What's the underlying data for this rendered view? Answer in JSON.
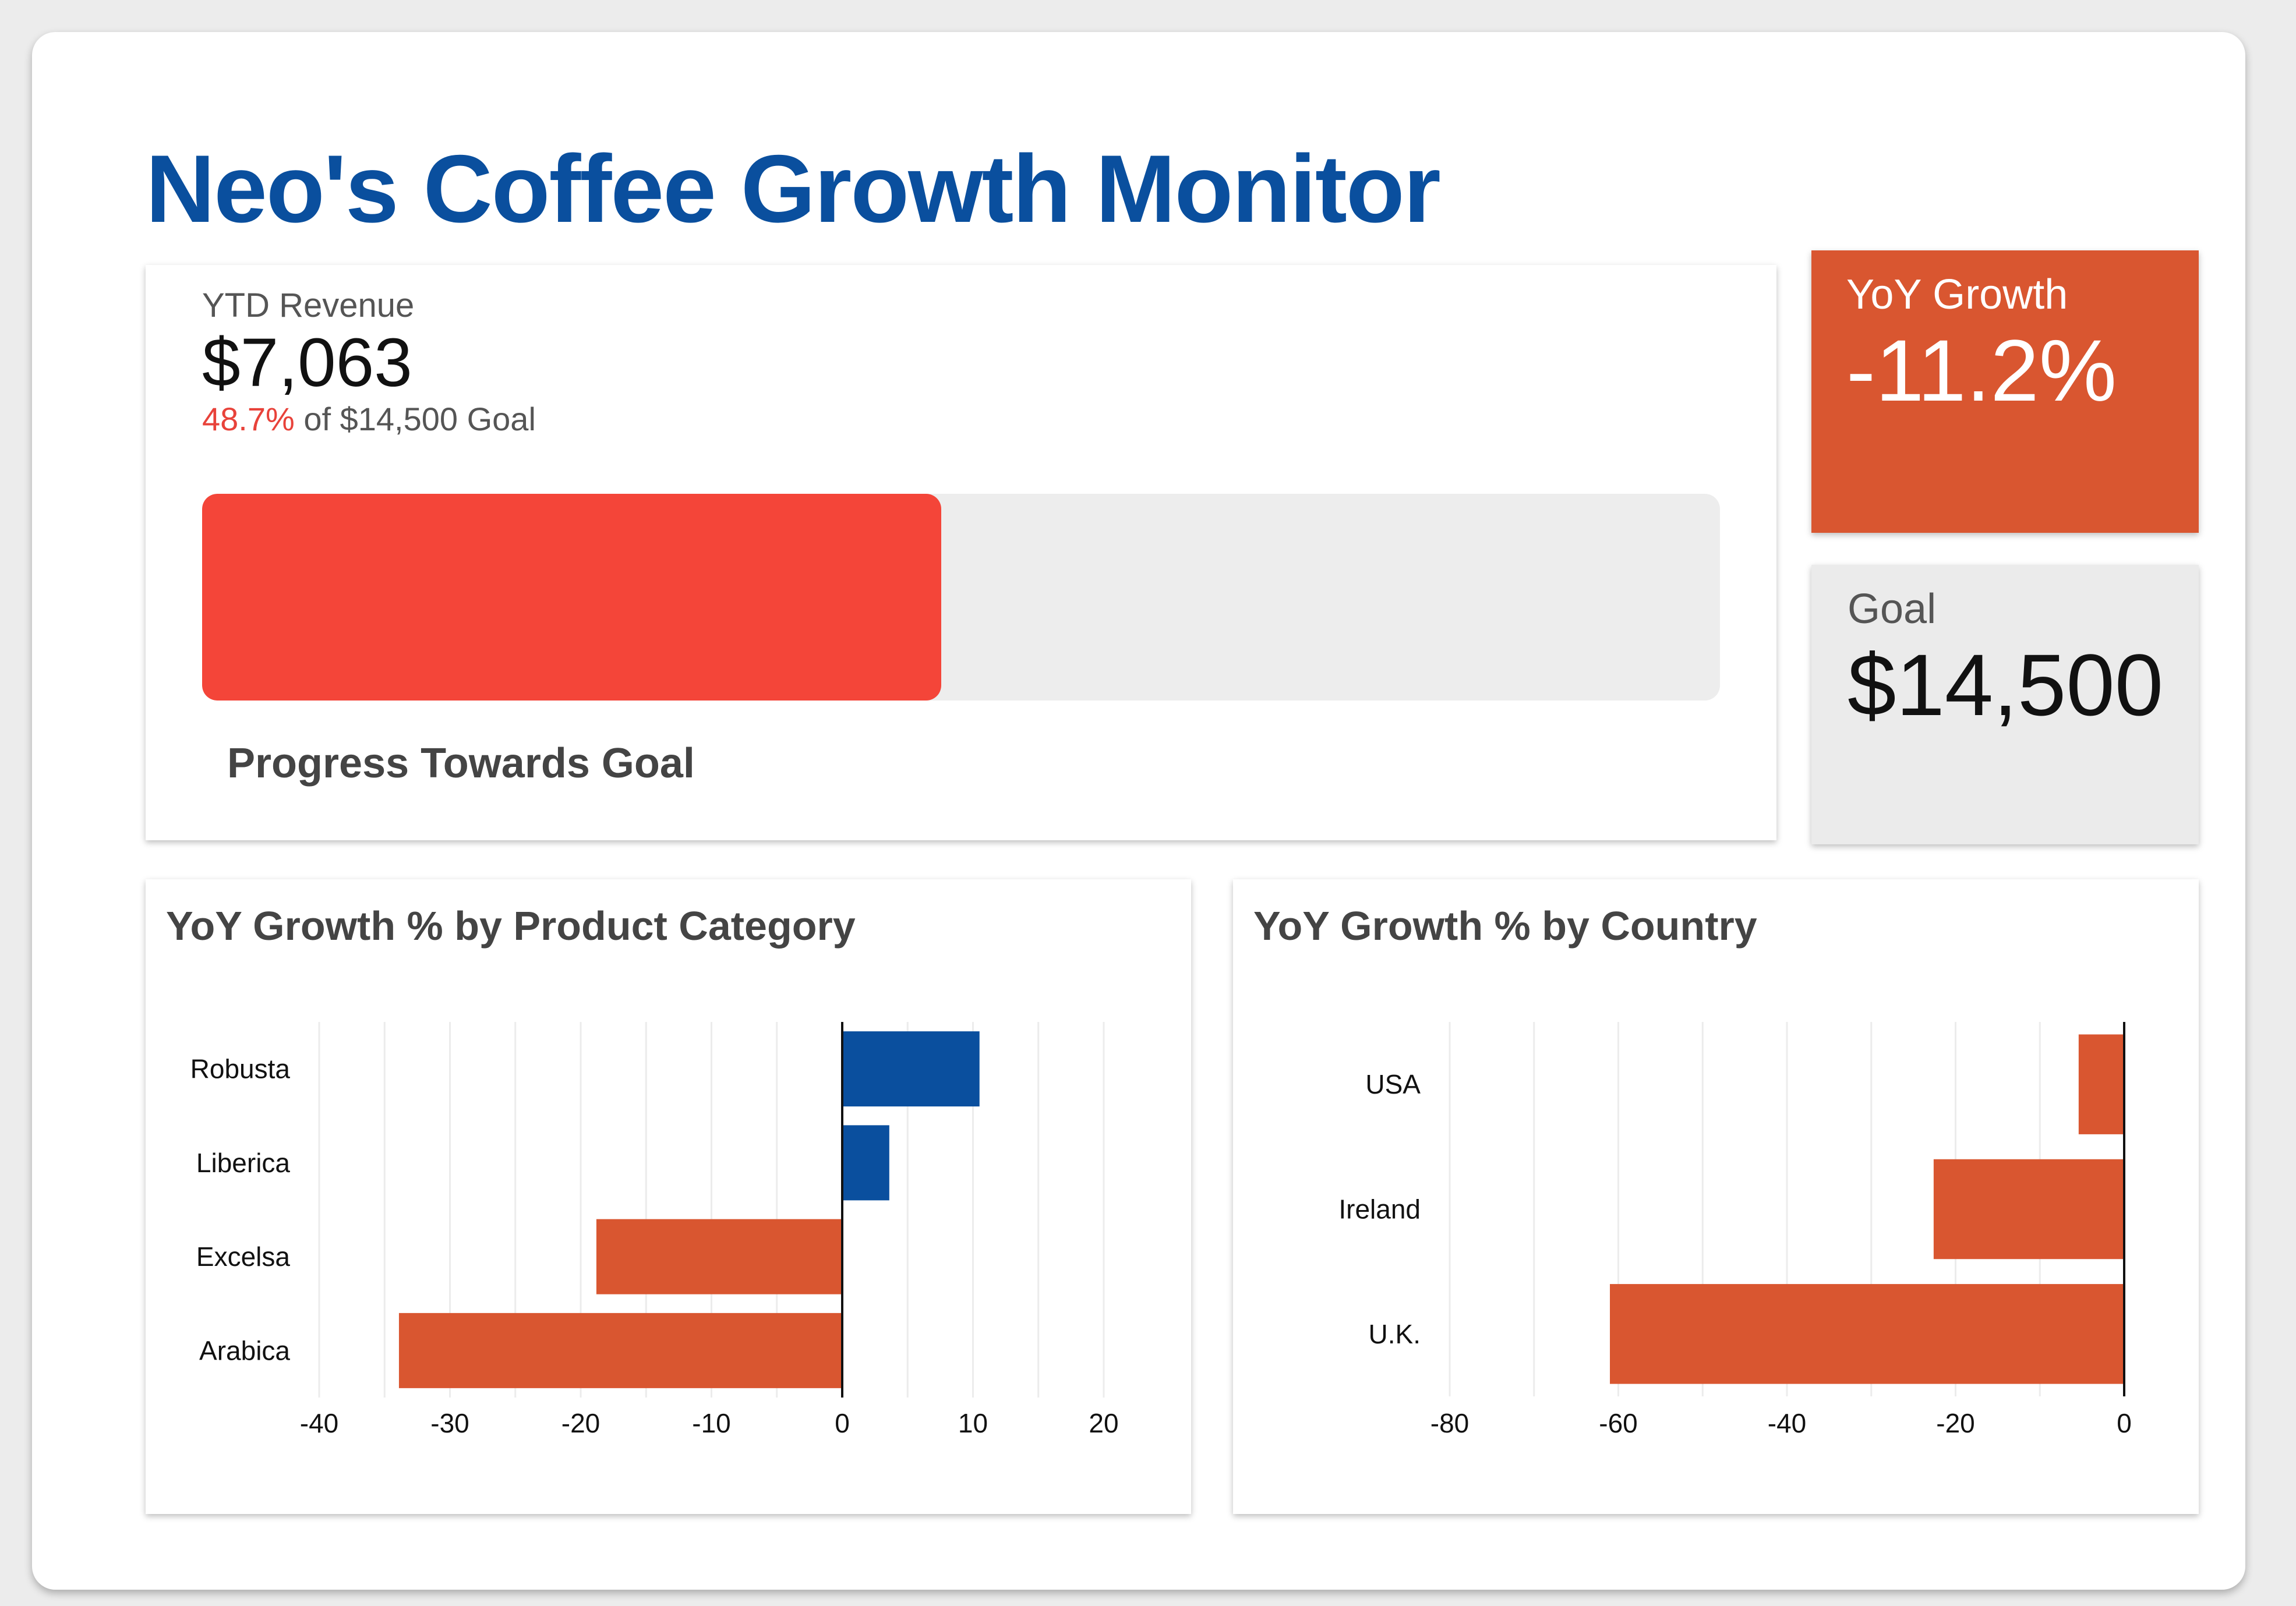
{
  "dashboard": {
    "title": "Neo's Coffee Growth Monitor"
  },
  "progress": {
    "label": "YTD Revenue",
    "value": "$7,063",
    "percent_text": "48.7%",
    "goal_text": "of $14,500 Goal",
    "fraction": 0.487,
    "caption": "Progress Towards Goal",
    "fill_color": "#f44539",
    "track_color": "#ededed"
  },
  "kpis": {
    "yoy": {
      "label": "YoY Growth",
      "value": "-11.2%",
      "color": "#d95630"
    },
    "goal": {
      "label": "Goal",
      "value": "$14,500",
      "color": "#ebebeb"
    }
  },
  "chart_data": [
    {
      "type": "bar",
      "orientation": "horizontal",
      "title": "YoY Growth % by Product Category",
      "categories": [
        "Robusta",
        "Liberica",
        "Excelsa",
        "Arabica"
      ],
      "values": [
        10.5,
        3.6,
        -18.8,
        -33.9
      ],
      "xlim": [
        -40,
        20
      ],
      "xticks": [
        -40,
        -30,
        -20,
        -10,
        0,
        10,
        20
      ],
      "grid": true,
      "positive_color": "#0a4f9e",
      "negative_color": "#d95630"
    },
    {
      "type": "bar",
      "orientation": "horizontal",
      "title": "YoY Growth % by Country",
      "categories": [
        "USA",
        "Ireland",
        "U.K."
      ],
      "values": [
        -5.4,
        -22.6,
        -61.0
      ],
      "xlim": [
        -80,
        0
      ],
      "xticks": [
        -80,
        -60,
        -40,
        -20,
        0
      ],
      "grid": true,
      "positive_color": "#0a4f9e",
      "negative_color": "#d95630"
    }
  ]
}
